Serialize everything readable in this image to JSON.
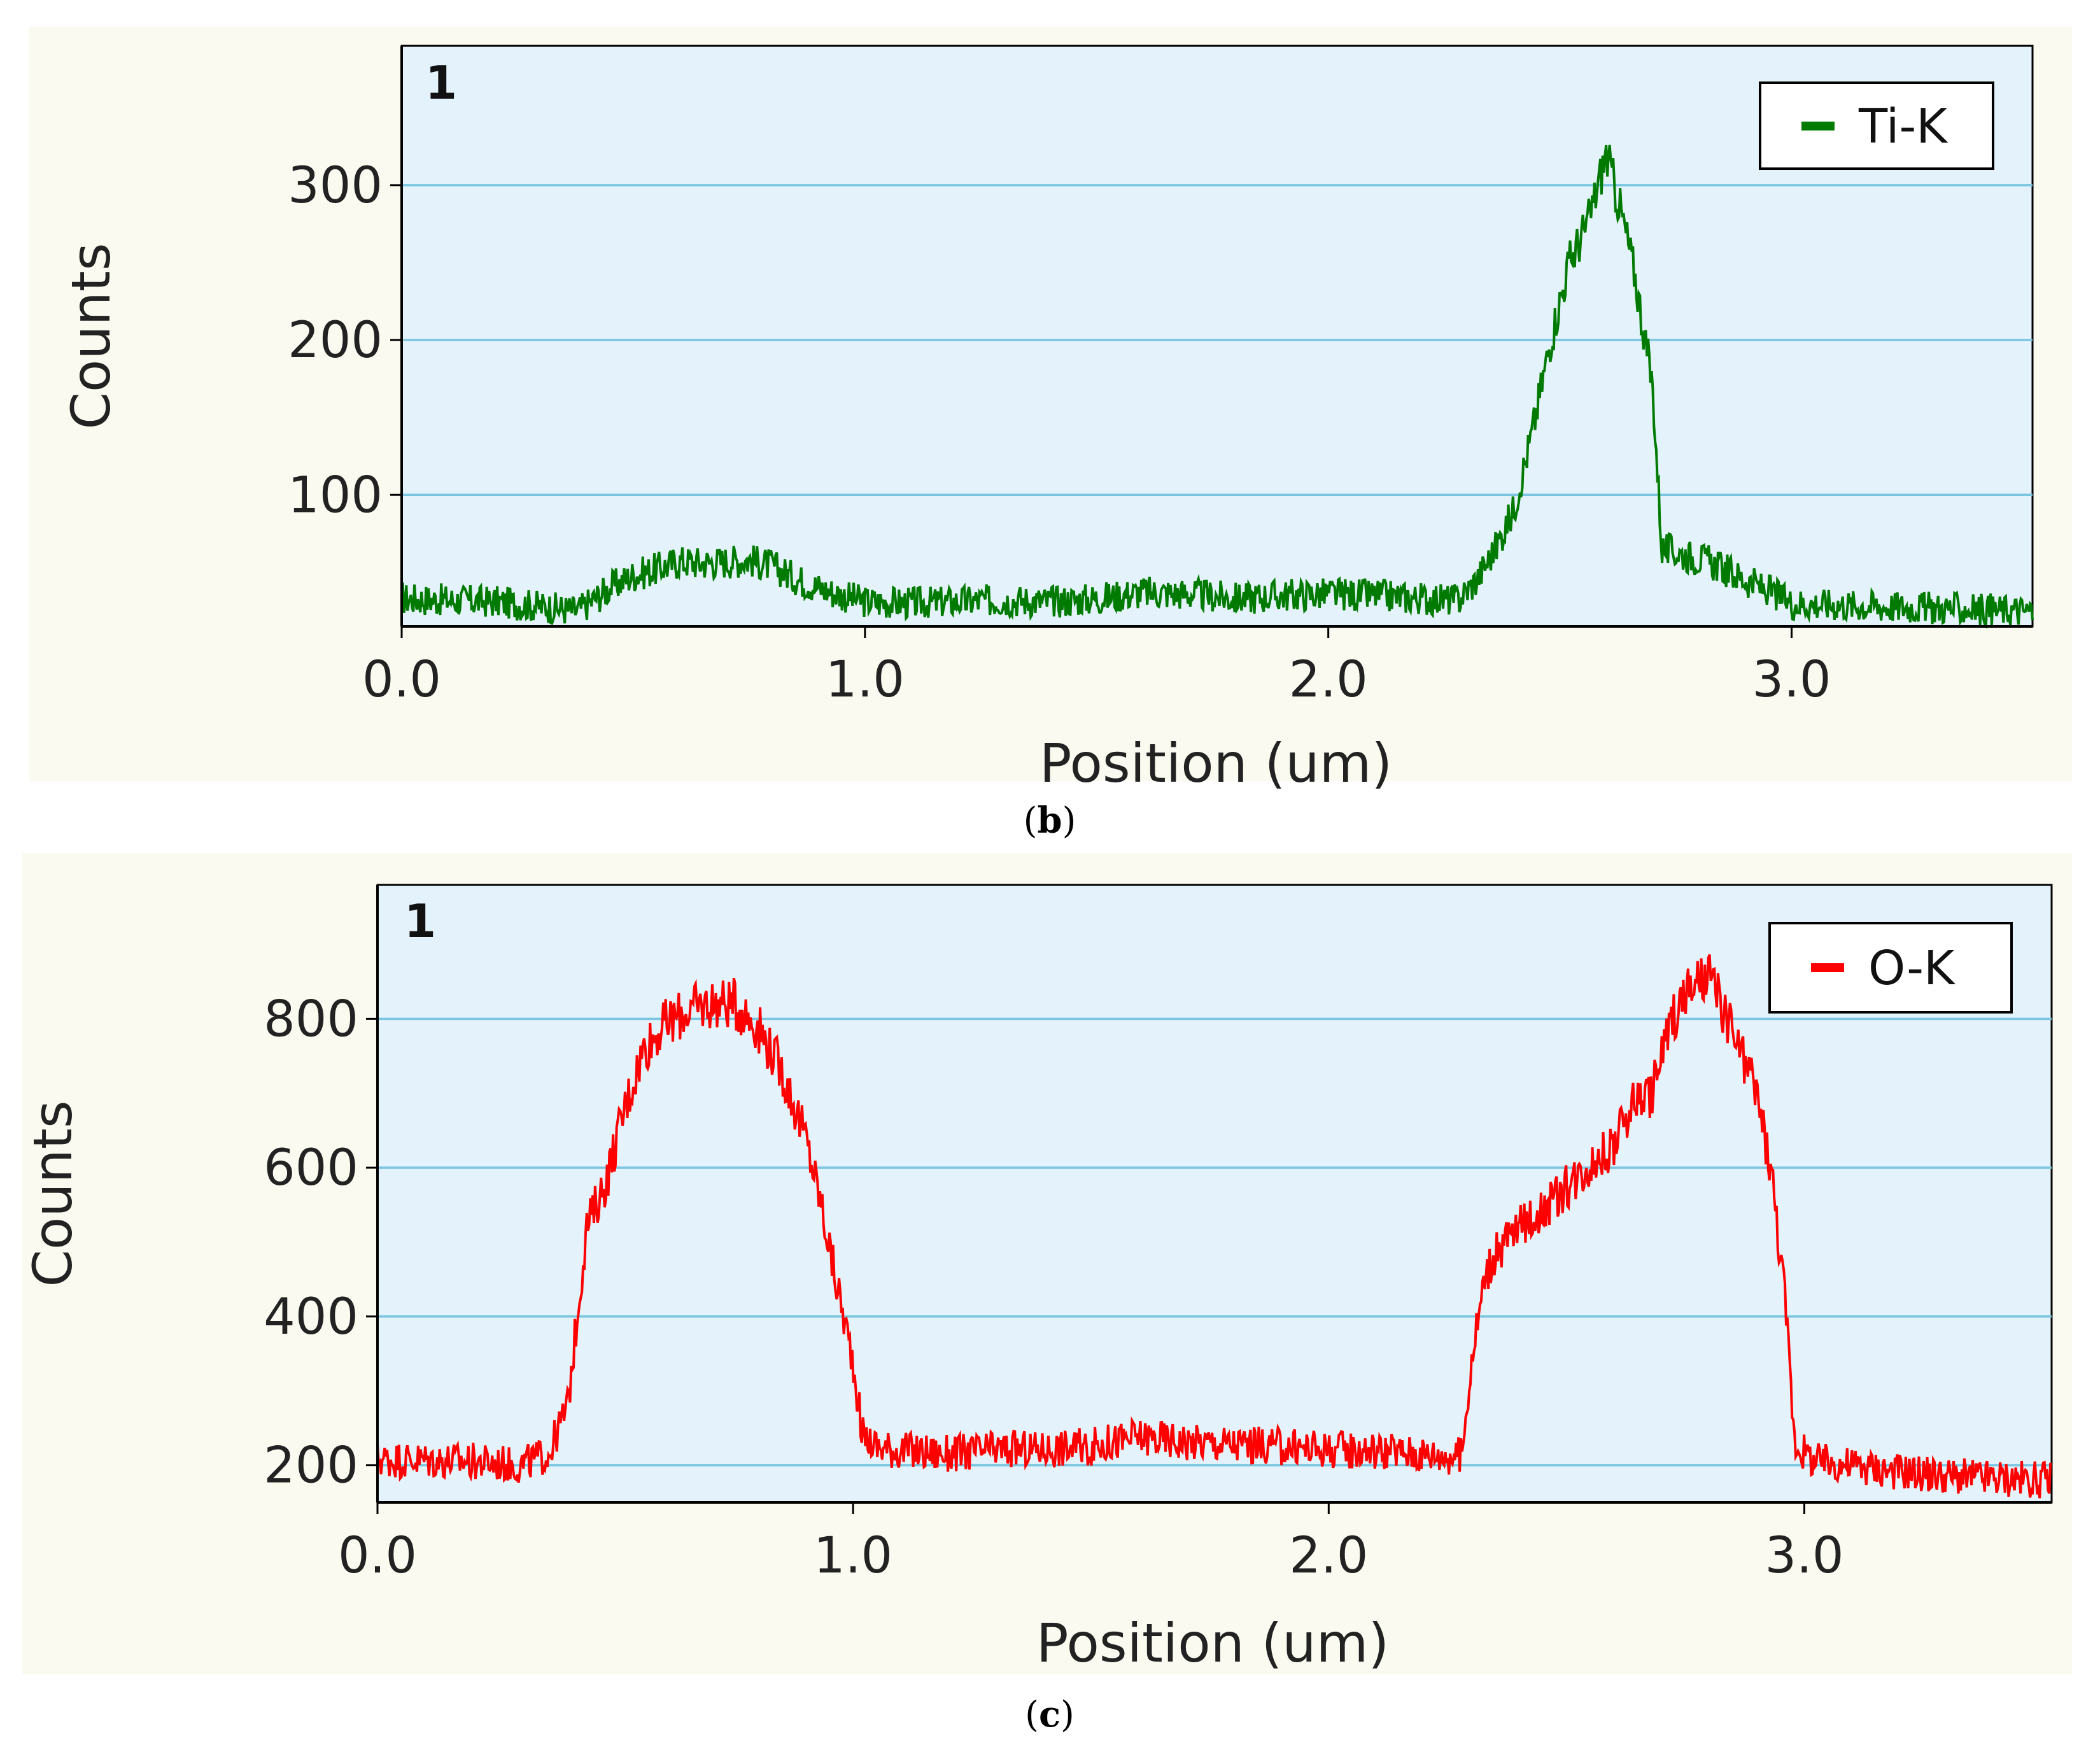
{
  "chart_data": [
    {
      "type": "line",
      "panel_number": "1",
      "caption_letter": "b",
      "xlabel": "Position (um)",
      "ylabel": "Counts",
      "xlim": [
        0,
        3.52
      ],
      "ylim": [
        15,
        390
      ],
      "xticks": [
        0.0,
        1.0,
        2.0,
        3.0
      ],
      "xtick_labels": [
        "0.0",
        "1.0",
        "2.0",
        "3.0"
      ],
      "yticks": [
        100,
        200,
        300
      ],
      "ytick_labels": [
        "100",
        "200",
        "300"
      ],
      "grid": true,
      "legend_position": "top-right",
      "series": [
        {
          "name": "Ti-K",
          "color": "#007a00",
          "x": [
            0.0,
            0.1,
            0.2,
            0.3,
            0.38,
            0.45,
            0.5,
            0.55,
            0.6,
            0.65,
            0.7,
            0.75,
            0.8,
            0.85,
            0.9,
            0.95,
            1.0,
            1.1,
            1.2,
            1.3,
            1.4,
            1.5,
            1.6,
            1.7,
            1.8,
            1.9,
            2.0,
            2.1,
            2.2,
            2.28,
            2.32,
            2.36,
            2.4,
            2.44,
            2.48,
            2.52,
            2.56,
            2.6,
            2.63,
            2.66,
            2.7,
            2.72,
            2.76,
            2.82,
            2.88,
            2.95,
            3.0,
            3.1,
            3.2,
            3.3,
            3.4,
            3.52
          ],
          "y": [
            33,
            32,
            31,
            28,
            25,
            40,
            48,
            52,
            57,
            56,
            57,
            58,
            54,
            46,
            40,
            35,
            31,
            30,
            31,
            32,
            31,
            33,
            37,
            36,
            33,
            35,
            36,
            35,
            33,
            32,
            45,
            65,
            90,
            140,
            200,
            250,
            275,
            320,
            285,
            245,
            170,
            65,
            62,
            57,
            48,
            38,
            30,
            29,
            28,
            27,
            26,
            25
          ]
        }
      ]
    },
    {
      "type": "line",
      "panel_number": "1",
      "caption_letter": "c",
      "xlabel": "Position (um)",
      "ylabel": "Counts",
      "xlim": [
        0,
        3.52
      ],
      "ylim": [
        150,
        980
      ],
      "xticks": [
        0.0,
        1.0,
        2.0,
        3.0
      ],
      "xtick_labels": [
        "0.0",
        "1.0",
        "2.0",
        "3.0"
      ],
      "yticks": [
        200,
        400,
        600,
        800
      ],
      "ytick_labels": [
        "200",
        "400",
        "600",
        "800"
      ],
      "grid": true,
      "legend_position": "top-right",
      "series": [
        {
          "name": "O-K",
          "color": "#ff0000",
          "x": [
            0.0,
            0.1,
            0.2,
            0.3,
            0.36,
            0.4,
            0.42,
            0.44,
            0.48,
            0.52,
            0.56,
            0.6,
            0.65,
            0.7,
            0.75,
            0.8,
            0.85,
            0.9,
            0.93,
            0.96,
            1.0,
            1.02,
            1.05,
            1.1,
            1.2,
            1.3,
            1.4,
            1.5,
            1.6,
            1.7,
            1.8,
            1.9,
            2.0,
            2.1,
            2.2,
            2.28,
            2.3,
            2.33,
            2.37,
            2.42,
            2.48,
            2.54,
            2.6,
            2.64,
            2.68,
            2.72,
            2.76,
            2.8,
            2.85,
            2.9,
            2.93,
            2.96,
            2.98,
            3.02,
            3.1,
            3.2,
            3.3,
            3.4,
            3.52
          ],
          "y": [
            208,
            207,
            205,
            200,
            215,
            280,
            400,
            520,
            580,
            680,
            760,
            790,
            810,
            820,
            820,
            790,
            730,
            640,
            560,
            460,
            340,
            240,
            225,
            220,
            215,
            220,
            222,
            225,
            238,
            232,
            228,
            225,
            222,
            220,
            215,
            212,
            340,
            460,
            500,
            530,
            560,
            600,
            630,
            690,
            700,
            800,
            840,
            855,
            780,
            700,
            600,
            420,
            230,
            205,
            200,
            192,
            185,
            182,
            180
          ]
        }
      ]
    }
  ]
}
